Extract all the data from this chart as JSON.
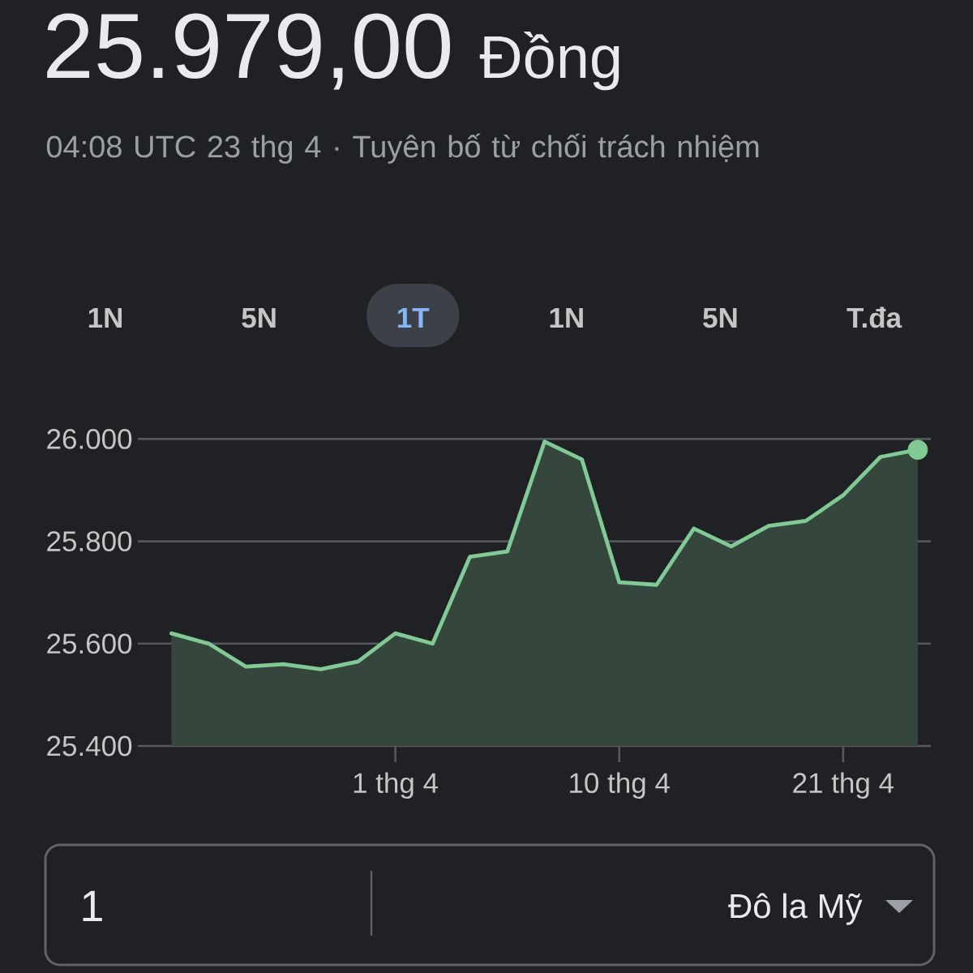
{
  "chart_data": {
    "type": "area",
    "title": "25.979,00 Đồng",
    "subtitle": "04:08 UTC 23 thg 4 · Tuyên bố từ chối trách nhiệm",
    "annotations": [
      "1N",
      "5N",
      "1T",
      "1N",
      "5N",
      "T.đa",
      "1",
      "Đô la Mỹ"
    ],
    "categories": [
      null,
      null,
      null,
      null,
      null,
      null,
      "1 thg 4",
      null,
      null,
      null,
      null,
      null,
      "10 thg 4",
      null,
      null,
      null,
      null,
      null,
      "21 thg 4",
      null,
      null
    ],
    "series": [
      {
        "color": "#81c995",
        "values": [
          25620,
          25600,
          25555,
          25560,
          25550,
          25565,
          25620,
          25600,
          25770,
          25780,
          25995,
          25960,
          25720,
          25715,
          25825,
          25790,
          25830,
          25840,
          25890,
          25965,
          25979
        ]
      },
      {
        "type": "scatter",
        "marker": "circle",
        "values": [
          null,
          null,
          null,
          null,
          null,
          null,
          null,
          null,
          null,
          null,
          null,
          null,
          null,
          null,
          null,
          null,
          null,
          null,
          null,
          null,
          25979
        ],
        "color": "#81c995"
      }
    ],
    "ylim": [
      25400,
      26000
    ],
    "yticks": [
      {
        "value": 25400,
        "label": "25.400"
      },
      {
        "value": 25600,
        "label": "25.600"
      },
      {
        "value": 25800,
        "label": "25.800"
      },
      {
        "value": 26000,
        "label": "26.000"
      }
    ],
    "grid": "y",
    "line_style": "solid"
  }
}
